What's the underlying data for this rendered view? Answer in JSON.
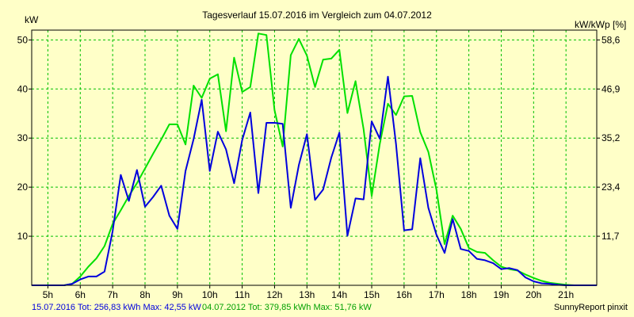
{
  "chart_data": {
    "type": "line",
    "title": "Tagesverlauf 15.07.2016 im Vergleich zum 04.07.2012",
    "ylabel_left": "kW",
    "ylabel_right": "kW/kWp [%]",
    "x_unit": "h",
    "xlim": [
      4.5,
      21.95
    ],
    "x_ticks": [
      "5h",
      "6h",
      "7h",
      "8h",
      "9h",
      "10h",
      "11h",
      "12h",
      "13h",
      "14h",
      "15h",
      "16h",
      "17h",
      "18h",
      "19h",
      "20h",
      "21h"
    ],
    "x_tick_values": [
      5,
      6,
      7,
      8,
      9,
      10,
      11,
      12,
      13,
      14,
      15,
      16,
      17,
      18,
      19,
      20,
      21
    ],
    "ylim_left": [
      0,
      52
    ],
    "y_ticks_left": [
      10,
      20,
      30,
      40,
      50
    ],
    "y_ticks_right": [
      "11,7",
      "23,4",
      "35,2",
      "46,9",
      "58,6"
    ],
    "grid": true,
    "series": [
      {
        "name": "15.07.2016",
        "color": "#0000dd",
        "x": [
          4.5,
          5.5,
          5.75,
          6.0,
          6.25,
          6.5,
          6.75,
          7.0,
          7.25,
          7.5,
          7.75,
          8.0,
          8.25,
          8.5,
          8.75,
          9.0,
          9.25,
          9.5,
          9.75,
          10.0,
          10.25,
          10.5,
          10.75,
          11.0,
          11.25,
          11.5,
          11.75,
          12.0,
          12.25,
          12.5,
          12.75,
          13.0,
          13.25,
          13.5,
          13.75,
          14.0,
          14.25,
          14.5,
          14.75,
          15.0,
          15.25,
          15.5,
          15.75,
          16.0,
          16.25,
          16.5,
          16.75,
          17.0,
          17.25,
          17.5,
          17.75,
          18.0,
          18.25,
          18.5,
          18.75,
          19.0,
          19.25,
          19.5,
          19.75,
          20.0,
          20.25,
          20.5,
          20.75,
          21.0,
          21.25,
          21.95
        ],
        "values": [
          0,
          0,
          0.3,
          1.2,
          1.8,
          1.8,
          2.8,
          11,
          22.5,
          17.2,
          23.5,
          16,
          18,
          20.3,
          14.2,
          11.5,
          23.3,
          29.8,
          37.8,
          23.3,
          31.3,
          27.7,
          20.8,
          29.6,
          35.2,
          18.8,
          33.1,
          33.1,
          32.9,
          15.8,
          24.5,
          30.8,
          17.4,
          19.5,
          26,
          31.1,
          10.1,
          17.7,
          17.5,
          33.4,
          29.9,
          42.5,
          28.8,
          11.2,
          11.4,
          25.9,
          15.8,
          10.3,
          6.6,
          13.5,
          7.4,
          7,
          5.4,
          5.1,
          4.5,
          3.3,
          3.5,
          3.1,
          1.6,
          0.8,
          0.4,
          0.3,
          0.1,
          0,
          0,
          0
        ]
      },
      {
        "name": "04.07.2012",
        "color": "#00e000",
        "x": [
          4.5,
          5.5,
          5.75,
          6.0,
          6.25,
          6.5,
          6.75,
          7.0,
          7.25,
          7.5,
          7.75,
          8.0,
          8.25,
          8.5,
          8.75,
          9.0,
          9.25,
          9.5,
          9.75,
          10.0,
          10.25,
          10.5,
          10.75,
          11.0,
          11.25,
          11.5,
          11.75,
          12.0,
          12.25,
          12.5,
          12.75,
          13.0,
          13.25,
          13.5,
          13.75,
          14.0,
          14.25,
          14.5,
          14.75,
          15.0,
          15.25,
          15.5,
          15.75,
          16.0,
          16.25,
          16.5,
          16.75,
          17.0,
          17.25,
          17.5,
          17.75,
          18.0,
          18.25,
          18.5,
          18.75,
          19.0,
          19.25,
          19.5,
          19.75,
          20.0,
          20.25,
          20.5,
          20.75,
          21.0,
          21.25,
          21.95
        ],
        "values": [
          0,
          0,
          0.3,
          1.8,
          3.8,
          5.5,
          8,
          12.5,
          15.3,
          18.2,
          20.8,
          23.8,
          26.8,
          29.7,
          32.8,
          32.8,
          28.7,
          40.7,
          38.2,
          42.1,
          43,
          31.4,
          46.4,
          39.4,
          40.4,
          51.3,
          51,
          35.7,
          28.3,
          46.9,
          50.2,
          46.8,
          40.4,
          46,
          46.2,
          48,
          35.1,
          41.6,
          31.8,
          18.2,
          28.8,
          37,
          34.7,
          38.5,
          38.6,
          31.2,
          27.2,
          19.5,
          8.4,
          14.2,
          11.5,
          7.6,
          6.8,
          6.6,
          5.1,
          3.8,
          3.3,
          3,
          2.2,
          1.5,
          0.9,
          0.5,
          0.3,
          0.1,
          0,
          0
        ]
      }
    ],
    "footer": {
      "s1_label": "15.07.2016 Tot: 256,83 kWh Max: 42,55 kW",
      "s2_label": "04.07.2012 Tot: 379,85 kWh Max: 51,76 kW",
      "credit": "SunnyReport pinxit"
    }
  }
}
